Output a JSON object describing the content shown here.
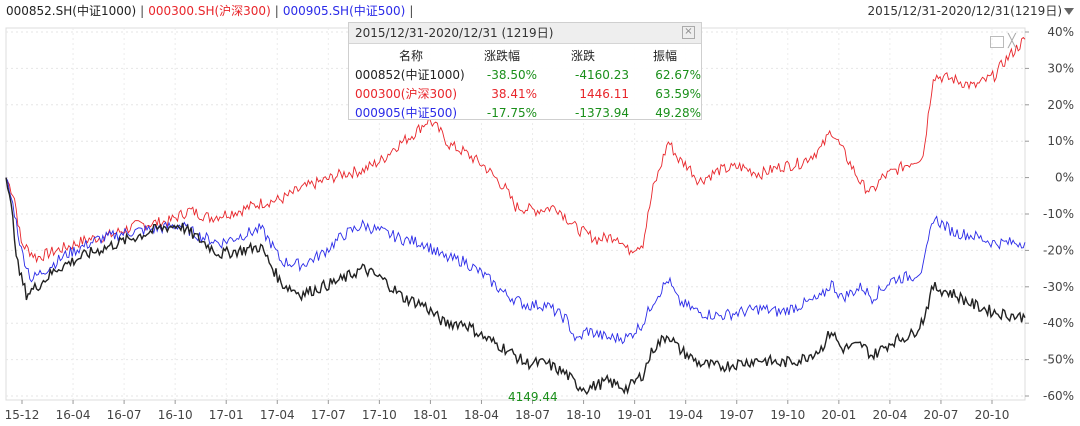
{
  "header": {
    "legend": [
      {
        "label": "000852.SH(中证1000)",
        "color": "#222222"
      },
      {
        "label": "000300.SH(沪深300)",
        "color": "#e8262b"
      },
      {
        "label": "000905.SH(中证500)",
        "color": "#2b2be8"
      }
    ],
    "separator": "|",
    "range_label": "2015/12/31-2020/12/31(1219日)"
  },
  "tooltip": {
    "title": "2015/12/31-2020/12/31 (1219日)",
    "headers": [
      "名称",
      "涨跌幅",
      "涨跌",
      "振幅"
    ],
    "rows": [
      {
        "name": "000852(中证1000)",
        "pct": "-38.50%",
        "chg": "-4160.23",
        "amp": "62.67%",
        "color": "#222222"
      },
      {
        "name": "000300(沪深300)",
        "pct": "38.41%",
        "chg": "1446.11",
        "amp": "63.59%",
        "color": "#e8262b"
      },
      {
        "name": "000905(中证500)",
        "pct": "-17.75%",
        "chg": "-1373.94",
        "amp": "49.28%",
        "color": "#2b2be8"
      }
    ]
  },
  "chart_data": {
    "type": "line",
    "y_ticks": [
      "40%",
      "30%",
      "20%",
      "10%",
      "0%",
      "-10%",
      "-20%",
      "-30%",
      "-40%",
      "-50%",
      "-60%"
    ],
    "x_ticks": [
      "15-12",
      "16-04",
      "16-07",
      "16-10",
      "17-01",
      "17-04",
      "17-07",
      "17-10",
      "18-01",
      "18-04",
      "18-07",
      "18-10",
      "19-01",
      "19-04",
      "19-07",
      "19-10",
      "20-01",
      "20-04",
      "20-07",
      "20-10"
    ],
    "ylim": [
      -60,
      40
    ],
    "annotation": {
      "text": "4149.44",
      "color": "#1a8f1a"
    },
    "series": [
      {
        "key": "csi300",
        "color": "#e8262b",
        "points": [
          [
            0,
            0
          ],
          [
            0.008,
            -5
          ],
          [
            0.015,
            -18
          ],
          [
            0.03,
            -22
          ],
          [
            0.05,
            -20
          ],
          [
            0.08,
            -17
          ],
          [
            0.1,
            -16
          ],
          [
            0.13,
            -13
          ],
          [
            0.16,
            -12
          ],
          [
            0.18,
            -9
          ],
          [
            0.2,
            -11
          ],
          [
            0.23,
            -9
          ],
          [
            0.25,
            -7
          ],
          [
            0.27,
            -6
          ],
          [
            0.29,
            -3
          ],
          [
            0.31,
            -1
          ],
          [
            0.33,
            1
          ],
          [
            0.35,
            2
          ],
          [
            0.37,
            5
          ],
          [
            0.38,
            8
          ],
          [
            0.4,
            12
          ],
          [
            0.415,
            16
          ],
          [
            0.425,
            13
          ],
          [
            0.435,
            9
          ],
          [
            0.45,
            7
          ],
          [
            0.47,
            3
          ],
          [
            0.49,
            -3
          ],
          [
            0.5,
            -8
          ],
          [
            0.52,
            -9
          ],
          [
            0.54,
            -8
          ],
          [
            0.56,
            -14
          ],
          [
            0.58,
            -17
          ],
          [
            0.6,
            -16
          ],
          [
            0.61,
            -20
          ],
          [
            0.625,
            -18
          ],
          [
            0.635,
            -3
          ],
          [
            0.64,
            1
          ],
          [
            0.65,
            10
          ],
          [
            0.66,
            5
          ],
          [
            0.67,
            3
          ],
          [
            0.68,
            -1
          ],
          [
            0.7,
            2
          ],
          [
            0.72,
            3
          ],
          [
            0.74,
            1
          ],
          [
            0.76,
            3
          ],
          [
            0.78,
            4
          ],
          [
            0.8,
            8
          ],
          [
            0.81,
            13
          ],
          [
            0.82,
            8
          ],
          [
            0.83,
            3
          ],
          [
            0.84,
            -2
          ],
          [
            0.85,
            -4
          ],
          [
            0.86,
            0
          ],
          [
            0.88,
            3
          ],
          [
            0.9,
            6
          ],
          [
            0.91,
            28
          ],
          [
            0.93,
            27
          ],
          [
            0.95,
            25
          ],
          [
            0.97,
            28
          ],
          [
            0.98,
            32
          ],
          [
            1,
            38
          ]
        ]
      },
      {
        "key": "csi500",
        "color": "#2b2be8",
        "points": [
          [
            0,
            0
          ],
          [
            0.008,
            -9
          ],
          [
            0.015,
            -20
          ],
          [
            0.025,
            -28
          ],
          [
            0.04,
            -25
          ],
          [
            0.06,
            -21
          ],
          [
            0.09,
            -17
          ],
          [
            0.12,
            -15
          ],
          [
            0.15,
            -14
          ],
          [
            0.17,
            -13
          ],
          [
            0.19,
            -16
          ],
          [
            0.21,
            -18
          ],
          [
            0.23,
            -16
          ],
          [
            0.25,
            -14
          ],
          [
            0.26,
            -18
          ],
          [
            0.27,
            -23
          ],
          [
            0.29,
            -24
          ],
          [
            0.31,
            -21
          ],
          [
            0.33,
            -16
          ],
          [
            0.35,
            -13
          ],
          [
            0.37,
            -15
          ],
          [
            0.39,
            -17
          ],
          [
            0.41,
            -18
          ],
          [
            0.43,
            -22
          ],
          [
            0.45,
            -23
          ],
          [
            0.47,
            -27
          ],
          [
            0.49,
            -32
          ],
          [
            0.51,
            -35
          ],
          [
            0.53,
            -35
          ],
          [
            0.55,
            -39
          ],
          [
            0.56,
            -45
          ],
          [
            0.57,
            -42
          ],
          [
            0.59,
            -44
          ],
          [
            0.61,
            -44
          ],
          [
            0.625,
            -40
          ],
          [
            0.635,
            -34
          ],
          [
            0.65,
            -28
          ],
          [
            0.66,
            -34
          ],
          [
            0.68,
            -37
          ],
          [
            0.7,
            -38
          ],
          [
            0.72,
            -37
          ],
          [
            0.74,
            -36
          ],
          [
            0.76,
            -37
          ],
          [
            0.78,
            -35
          ],
          [
            0.8,
            -33
          ],
          [
            0.81,
            -29
          ],
          [
            0.82,
            -33
          ],
          [
            0.84,
            -30
          ],
          [
            0.85,
            -33
          ],
          [
            0.87,
            -28
          ],
          [
            0.89,
            -27
          ],
          [
            0.9,
            -25
          ],
          [
            0.91,
            -11
          ],
          [
            0.93,
            -15
          ],
          [
            0.95,
            -16
          ],
          [
            0.97,
            -18
          ],
          [
            1,
            -17.75
          ]
        ]
      },
      {
        "key": "csi1000",
        "color": "#222222",
        "points": [
          [
            0,
            0
          ],
          [
            0.006,
            -10
          ],
          [
            0.012,
            -25
          ],
          [
            0.02,
            -32
          ],
          [
            0.03,
            -30
          ],
          [
            0.05,
            -25
          ],
          [
            0.08,
            -21
          ],
          [
            0.1,
            -19
          ],
          [
            0.12,
            -17
          ],
          [
            0.15,
            -14
          ],
          [
            0.17,
            -13
          ],
          [
            0.19,
            -17
          ],
          [
            0.21,
            -21
          ],
          [
            0.23,
            -20
          ],
          [
            0.25,
            -19
          ],
          [
            0.26,
            -24
          ],
          [
            0.27,
            -29
          ],
          [
            0.29,
            -32
          ],
          [
            0.31,
            -30
          ],
          [
            0.33,
            -28
          ],
          [
            0.35,
            -25
          ],
          [
            0.37,
            -28
          ],
          [
            0.39,
            -33
          ],
          [
            0.41,
            -35
          ],
          [
            0.43,
            -40
          ],
          [
            0.45,
            -40
          ],
          [
            0.47,
            -44
          ],
          [
            0.49,
            -47
          ],
          [
            0.51,
            -51
          ],
          [
            0.53,
            -51
          ],
          [
            0.55,
            -54
          ],
          [
            0.56,
            -57
          ],
          [
            0.57,
            -58
          ],
          [
            0.59,
            -56
          ],
          [
            0.61,
            -58
          ],
          [
            0.625,
            -54
          ],
          [
            0.635,
            -47
          ],
          [
            0.65,
            -43
          ],
          [
            0.66,
            -47
          ],
          [
            0.68,
            -51
          ],
          [
            0.7,
            -52
          ],
          [
            0.72,
            -51
          ],
          [
            0.74,
            -50
          ],
          [
            0.76,
            -51
          ],
          [
            0.78,
            -50
          ],
          [
            0.8,
            -47
          ],
          [
            0.81,
            -42
          ],
          [
            0.82,
            -47
          ],
          [
            0.84,
            -46
          ],
          [
            0.85,
            -49
          ],
          [
            0.87,
            -45
          ],
          [
            0.89,
            -43
          ],
          [
            0.9,
            -39
          ],
          [
            0.91,
            -30
          ],
          [
            0.93,
            -32
          ],
          [
            0.95,
            -35
          ],
          [
            0.97,
            -37
          ],
          [
            1,
            -38.5
          ]
        ]
      }
    ]
  }
}
